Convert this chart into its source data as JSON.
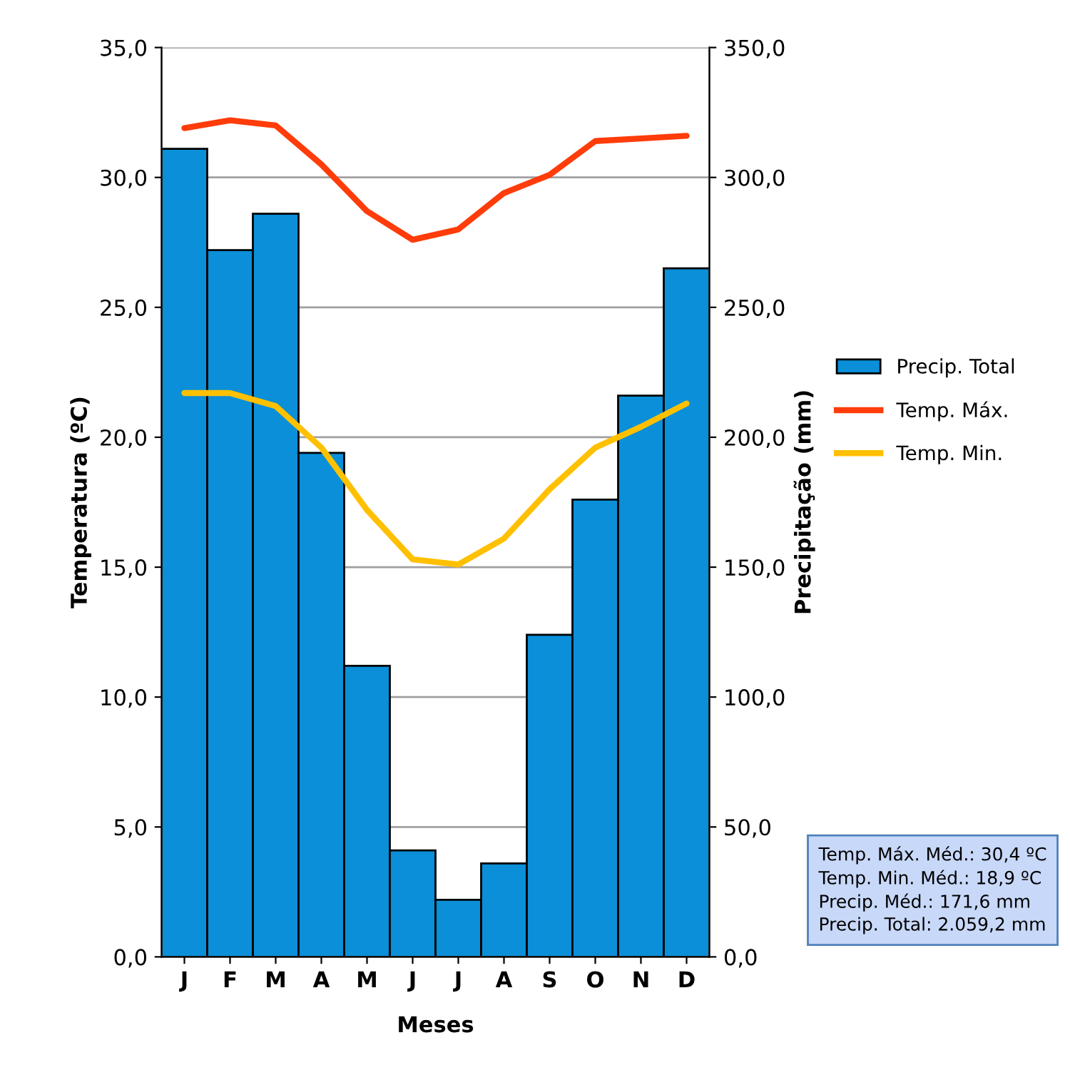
{
  "chart_data": {
    "type": "bar",
    "xlabel": "Meses",
    "ylabel": "Temperatura (ºC)",
    "y2label": "Precipitação (mm)",
    "categories": [
      "J",
      "F",
      "M",
      "A",
      "M",
      "J",
      "J",
      "A",
      "S",
      "O",
      "N",
      "D"
    ],
    "series": [
      {
        "name": "Precip. Total",
        "axis": "y2",
        "color": "#0a8fd8",
        "values": [
          311,
          272,
          286,
          194,
          112,
          41,
          22,
          36,
          124,
          176,
          216,
          265
        ]
      },
      {
        "name": "Temp. Máx.",
        "type": "line",
        "axis": "y",
        "color": "#ff3c0a",
        "values": [
          31.9,
          32.2,
          32.0,
          30.5,
          28.7,
          27.6,
          28.0,
          29.4,
          30.1,
          31.4,
          31.5,
          31.6
        ]
      },
      {
        "name": "Temp. Min.",
        "type": "line",
        "axis": "y",
        "color": "#ffc000",
        "values": [
          21.7,
          21.7,
          21.2,
          19.6,
          17.2,
          15.3,
          15.1,
          16.1,
          18.0,
          19.6,
          20.4,
          21.3
        ]
      }
    ],
    "ylim": [
      0,
      35
    ],
    "yticks": [
      {
        "value": 0,
        "label": "0,0"
      },
      {
        "value": 5,
        "label": "5,0"
      },
      {
        "value": 10,
        "label": "10,0"
      },
      {
        "value": 15,
        "label": "15,0"
      },
      {
        "value": 20,
        "label": "20,0"
      },
      {
        "value": 25,
        "label": "25,0"
      },
      {
        "value": 30,
        "label": "30,0"
      },
      {
        "value": 35,
        "label": "35,0"
      }
    ],
    "y2lim": [
      0,
      350
    ],
    "y2ticks": [
      {
        "value": 0,
        "label": "0,0"
      },
      {
        "value": 50,
        "label": "50,0"
      },
      {
        "value": 100,
        "label": "100,0"
      },
      {
        "value": 150,
        "label": "150,0"
      },
      {
        "value": 200,
        "label": "200,0"
      },
      {
        "value": 250,
        "label": "250,0"
      },
      {
        "value": 300,
        "label": "300,0"
      },
      {
        "value": 350,
        "label": "350,0"
      }
    ],
    "grid": "y",
    "legend": "right",
    "marker": "none",
    "line_style": "solid",
    "annotations": [
      "Temp. Máx. Méd.: 30,4 ºC\nTemp. Min. Méd.: 18,9 ºC\nPrecip. Méd.: 171,6 mm\nPrecip. Total: 2.059,2 mm"
    ]
  }
}
